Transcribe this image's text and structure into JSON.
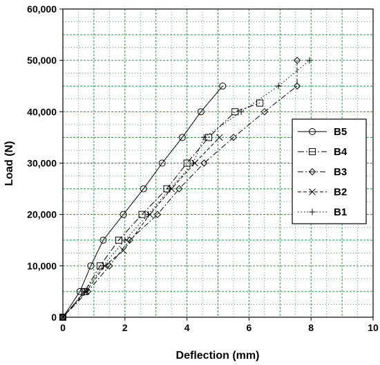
{
  "chart_data": {
    "type": "line",
    "xlabel": "Deflection (mm)",
    "ylabel": "Load (N)",
    "xlim": [
      0,
      10
    ],
    "ylim": [
      0,
      60000
    ],
    "x_ticks": [
      0,
      2,
      4,
      6,
      8,
      10
    ],
    "x_tick_labels": [
      "0",
      "2",
      "4",
      "6",
      "8",
      "10"
    ],
    "y_ticks": [
      0,
      10000,
      20000,
      30000,
      40000,
      50000,
      60000
    ],
    "y_tick_labels": [
      "0",
      "10,000",
      "20,000",
      "30,000",
      "40,000",
      "50,000",
      "60,000"
    ],
    "grid": true,
    "legend_position": "right",
    "series": [
      {
        "name": "B5",
        "marker": "circle",
        "dash": "solid",
        "color": "#000000",
        "x": [
          0,
          0.55,
          0.9,
          1.3,
          1.95,
          2.6,
          3.2,
          3.85,
          4.45,
          5.15
        ],
        "y": [
          0,
          5000,
          10000,
          15000,
          20000,
          25000,
          30000,
          35000,
          40000,
          45000
        ]
      },
      {
        "name": "B4",
        "marker": "square",
        "dash": "longdash",
        "color": "#000000",
        "x": [
          0,
          0.7,
          1.2,
          1.8,
          2.55,
          3.35,
          4.0,
          4.7,
          5.55,
          6.35
        ],
        "y": [
          0,
          5000,
          10000,
          15000,
          20000,
          25000,
          30000,
          35000,
          40000,
          41700
        ]
      },
      {
        "name": "B3",
        "marker": "diamond",
        "dash": "dashdot",
        "color": "#000000",
        "x": [
          0,
          0.8,
          1.5,
          2.15,
          3.05,
          3.75,
          4.55,
          5.5,
          6.5,
          7.55,
          7.55
        ],
        "y": [
          0,
          5000,
          10000,
          15000,
          20000,
          25000,
          30000,
          35000,
          40000,
          45000,
          50000
        ]
      },
      {
        "name": "B2",
        "marker": "x",
        "dash": "dash",
        "color": "#000000",
        "x": [
          0,
          0.75,
          1.35,
          1.95,
          2.8,
          3.5,
          4.25,
          5.05
        ],
        "y": [
          0,
          5000,
          10000,
          13000,
          20000,
          25000,
          30000,
          35000
        ]
      },
      {
        "name": "B1",
        "marker": "plus",
        "dash": "dot",
        "color": "#000000",
        "x": [
          0,
          0.7,
          1.3,
          2.0,
          2.75,
          3.45,
          4.2,
          4.55,
          5.75,
          6.95,
          7.95
        ],
        "y": [
          0,
          5000,
          10000,
          15000,
          20000,
          25000,
          30000,
          35000,
          40000,
          45000,
          50000
        ]
      }
    ],
    "colors": {
      "grid": "#1f9a3a",
      "axis": "#000000",
      "plot_bg": "#ffffff"
    }
  }
}
